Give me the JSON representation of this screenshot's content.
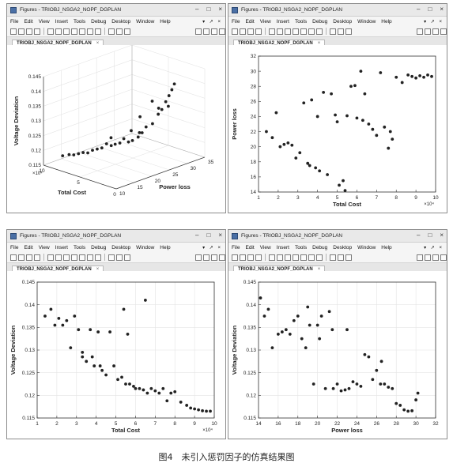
{
  "windows": [
    {
      "title": "Figures - TRIOBJ_NSGA2_NOPF_DGPLAN",
      "menu": [
        "File",
        "Edit",
        "View",
        "Insert",
        "Tools",
        "Debug",
        "Desktop",
        "Window",
        "Help"
      ],
      "dock_controls": "▾ ↗ ×",
      "tab_label": "TRIOBJ_NSGA2_NOPF_DGPLAN",
      "window_buttons": [
        "–",
        "□",
        "×"
      ]
    },
    {
      "title": "Figures - TRIOBJ_NSGA2_NOPF_DGPLAN",
      "menu": [
        "File",
        "Edit",
        "View",
        "Insert",
        "Tools",
        "Debug",
        "Desktop",
        "Window",
        "Help"
      ],
      "dock_controls": "▾ ↗ ×",
      "tab_label": "TRIOBJ_NSGA2_NOPF_DGPLAN",
      "window_buttons": [
        "–",
        "□",
        "×"
      ]
    },
    {
      "title": "Figures - TRIOBJ_NSGA2_NOPF_DGPLAN",
      "menu": [
        "File",
        "Edit",
        "View",
        "Insert",
        "Tools",
        "Debug",
        "Desktop",
        "Window",
        "Help"
      ],
      "dock_controls": "▾ ↗ ×",
      "tab_label": "TRIOBJ_NSGA2_NOPF_DGPLAN",
      "window_buttons": [
        "–",
        "□",
        "×"
      ]
    },
    {
      "title": "Figures - TRIOBJ_NSGA2_NOPF_DGPLAN",
      "menu": [
        "File",
        "Edit",
        "View",
        "Insert",
        "Tools",
        "Debug",
        "Desktop",
        "Window",
        "Help"
      ],
      "dock_controls": "▾ ↗ ×",
      "tab_label": "TRIOBJ_NSGA2_NOPF_DGPLAN",
      "window_buttons": [
        "–",
        "□",
        "×"
      ]
    }
  ],
  "caption": "图4　未引入惩罚因子的仿真结果图",
  "colors": {
    "marker": "#222222",
    "grid": "#e4e4e4",
    "axis": "#333333"
  },
  "chart_data": [
    {
      "type": "scatter3d",
      "title": "",
      "xlabel": "Total Cost",
      "ylabel": "Power loss",
      "zlabel": "Voltage Deviation",
      "xlim": [
        0,
        10
      ],
      "ylim": [
        10,
        35
      ],
      "zlim": [
        0.115,
        0.145
      ],
      "x_multiplier": "×10⁴",
      "xticks": [
        0,
        5,
        10
      ],
      "yticks": [
        10,
        15,
        20,
        25,
        30,
        35
      ],
      "zticks": [
        0.115,
        0.12,
        0.125,
        0.13,
        0.135,
        0.14,
        0.145
      ],
      "grid": true,
      "points": [
        [
          1.5,
          29.5,
          0.141
        ],
        [
          1.7,
          29.2,
          0.139
        ],
        [
          1.9,
          28.8,
          0.137
        ],
        [
          2.1,
          28.3,
          0.135
        ],
        [
          1.6,
          28.0,
          0.134
        ],
        [
          2.3,
          27.6,
          0.1325
        ],
        [
          2.5,
          27.0,
          0.131
        ],
        [
          2.2,
          26.5,
          0.1335
        ],
        [
          2.8,
          26.0,
          0.128
        ],
        [
          2.6,
          25.5,
          0.136
        ],
        [
          3.2,
          25.0,
          0.127
        ],
        [
          3.5,
          24.5,
          0.125
        ],
        [
          3.8,
          24.0,
          0.1235
        ],
        [
          3.3,
          23.5,
          0.131
        ],
        [
          4.1,
          23.0,
          0.1225
        ],
        [
          4.4,
          22.5,
          0.122
        ],
        [
          4.8,
          22.0,
          0.123
        ],
        [
          5.1,
          21.5,
          0.1215
        ],
        [
          5.5,
          21.0,
          0.121
        ],
        [
          5.8,
          20.5,
          0.1205
        ],
        [
          6.2,
          20.0,
          0.121
        ],
        [
          6.6,
          19.5,
          0.1195
        ],
        [
          7.0,
          19.0,
          0.119
        ],
        [
          7.4,
          18.5,
          0.1185
        ],
        [
          7.8,
          18.0,
          0.1175
        ],
        [
          8.2,
          17.5,
          0.1175
        ],
        [
          8.6,
          17.0,
          0.117
        ],
        [
          9.0,
          16.5,
          0.1165
        ],
        [
          9.4,
          16.0,
          0.1165
        ],
        [
          9.8,
          15.0,
          0.1162
        ],
        [
          5.0,
          24.5,
          0.1245
        ],
        [
          4.6,
          26.0,
          0.1235
        ],
        [
          6.8,
          22.5,
          0.1215
        ]
      ]
    },
    {
      "type": "scatter",
      "title": "",
      "xlabel": "Total Cost",
      "ylabel": "Power loss",
      "xlim": [
        1,
        10
      ],
      "ylim": [
        14,
        32
      ],
      "x_multiplier": "×10⁴",
      "xticks": [
        1,
        2,
        3,
        4,
        5,
        6,
        7,
        8,
        9,
        10
      ],
      "yticks": [
        14,
        16,
        18,
        20,
        22,
        24,
        26,
        28,
        30,
        32
      ],
      "grid": false,
      "x": [
        1.4,
        1.7,
        1.9,
        2.1,
        2.3,
        2.5,
        2.7,
        2.9,
        3.1,
        3.3,
        3.5,
        3.7,
        3.9,
        4.1,
        4.3,
        4.5,
        4.7,
        4.9,
        5.1,
        5.3,
        5.5,
        5.7,
        5.9,
        6.0,
        6.2,
        6.4,
        6.6,
        6.8,
        7.0,
        7.2,
        7.4,
        7.6,
        7.8,
        8.0,
        8.3,
        8.6,
        8.8,
        9.0,
        9.2,
        9.4,
        9.6,
        9.8,
        4.0,
        3.6,
        5.0,
        5.4,
        6.3,
        7.7
      ],
      "y": [
        22.0,
        21.2,
        24.5,
        20.0,
        20.3,
        20.5,
        20.2,
        18.5,
        19.2,
        25.8,
        17.8,
        26.2,
        17.2,
        16.8,
        27.2,
        16.3,
        27.0,
        24.2,
        14.9,
        15.5,
        24.1,
        28.0,
        28.1,
        23.8,
        30.0,
        27.0,
        23.0,
        22.3,
        21.5,
        29.8,
        22.6,
        19.8,
        21.0,
        29.2,
        28.5,
        29.5,
        29.3,
        29.1,
        29.4,
        29.2,
        29.5,
        29.3,
        24.0,
        17.5,
        23.3,
        14.2,
        23.5,
        22.0
      ]
    },
    {
      "type": "scatter",
      "title": "",
      "xlabel": "Total Cost",
      "ylabel": "Voltage Deviation",
      "xlim": [
        1,
        10
      ],
      "ylim": [
        0.115,
        0.145
      ],
      "x_multiplier": "×10⁴",
      "xticks": [
        1,
        2,
        3,
        4,
        5,
        6,
        7,
        8,
        9,
        10
      ],
      "yticks": [
        0.115,
        0.12,
        0.125,
        0.13,
        0.135,
        0.14,
        0.145
      ],
      "grid": true,
      "x": [
        1.4,
        1.7,
        1.9,
        2.1,
        2.3,
        2.5,
        2.7,
        2.9,
        3.1,
        3.3,
        3.5,
        3.7,
        3.9,
        4.1,
        4.3,
        4.5,
        4.7,
        4.9,
        5.1,
        5.3,
        5.5,
        5.7,
        5.9,
        6.0,
        6.2,
        6.4,
        6.6,
        6.8,
        7.0,
        7.2,
        7.4,
        7.6,
        7.8,
        8.0,
        8.3,
        8.6,
        8.8,
        9.0,
        9.2,
        9.4,
        9.6,
        9.8,
        5.4,
        6.5,
        3.3,
        3.8,
        4.2,
        5.6
      ],
      "y": [
        0.1375,
        0.139,
        0.1355,
        0.137,
        0.1355,
        0.1365,
        0.1305,
        0.1375,
        0.1345,
        0.1285,
        0.1275,
        0.1345,
        0.1265,
        0.134,
        0.1255,
        0.1245,
        0.134,
        0.1265,
        0.1235,
        0.124,
        0.1225,
        0.1225,
        0.122,
        0.1215,
        0.1215,
        0.1212,
        0.1205,
        0.1215,
        0.121,
        0.1205,
        0.1215,
        0.1188,
        0.1205,
        0.1208,
        0.1185,
        0.1178,
        0.1172,
        0.117,
        0.1168,
        0.1166,
        0.1165,
        0.1165,
        0.139,
        0.141,
        0.1295,
        0.1285,
        0.1265,
        0.1335
      ]
    },
    {
      "type": "scatter",
      "title": "",
      "xlabel": "Power loss",
      "ylabel": "Voltage Deviation",
      "xlim": [
        14,
        32
      ],
      "ylim": [
        0.115,
        0.145
      ],
      "xticks": [
        14,
        16,
        18,
        20,
        22,
        24,
        26,
        28,
        30,
        32
      ],
      "yticks": [
        0.115,
        0.12,
        0.125,
        0.13,
        0.135,
        0.14,
        0.145
      ],
      "grid": true,
      "x": [
        14.2,
        14.6,
        15.0,
        15.4,
        16.0,
        16.4,
        16.8,
        17.2,
        17.6,
        18.0,
        18.4,
        18.8,
        19.2,
        19.6,
        20.0,
        20.4,
        20.8,
        21.2,
        21.6,
        22.0,
        22.4,
        22.8,
        23.2,
        23.6,
        24.0,
        24.4,
        24.8,
        25.2,
        25.6,
        26.0,
        26.4,
        26.8,
        27.2,
        27.6,
        28.0,
        28.4,
        28.8,
        29.2,
        29.6,
        30.0,
        30.2,
        19.0,
        20.2,
        21.5,
        23.0,
        26.5
      ],
      "y": [
        0.1415,
        0.1375,
        0.139,
        0.1305,
        0.1335,
        0.134,
        0.1345,
        0.1335,
        0.1365,
        0.1375,
        0.1325,
        0.1305,
        0.1355,
        0.1225,
        0.1355,
        0.1375,
        0.1215,
        0.1385,
        0.1215,
        0.1225,
        0.121,
        0.1212,
        0.1215,
        0.123,
        0.1225,
        0.122,
        0.129,
        0.1285,
        0.1235,
        0.1255,
        0.1225,
        0.1225,
        0.1218,
        0.1215,
        0.1182,
        0.1178,
        0.1168,
        0.1165,
        0.1166,
        0.119,
        0.1205,
        0.1395,
        0.1325,
        0.1345,
        0.1345,
        0.1275
      ]
    }
  ]
}
